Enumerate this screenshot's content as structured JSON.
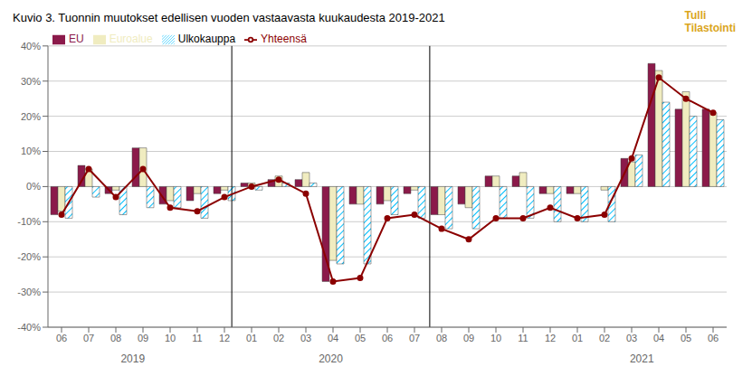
{
  "chart_data": {
    "type": "bar",
    "title": "Kuvio  3. Tuonnin  muutokset edellisen vuoden  vastaavasta kuukaudesta 2019-2021",
    "categories": [
      "06",
      "07",
      "08",
      "09",
      "10",
      "11",
      "12",
      "01",
      "02",
      "03",
      "04",
      "05",
      "06",
      "07",
      "08",
      "09",
      "10",
      "11",
      "12",
      "01",
      "02",
      "03",
      "04",
      "05",
      "06"
    ],
    "series": [
      {
        "name": "EU",
        "color": "#8B1A4A",
        "values": [
          -8,
          6,
          -2,
          11,
          -5,
          -4,
          -2,
          1,
          2,
          2,
          -27,
          -5,
          -5,
          -2,
          -8,
          -5,
          3,
          3,
          -2,
          -2,
          0,
          8,
          35,
          22,
          22
        ]
      },
      {
        "name": "Euroalue",
        "color": "#F0ECC0",
        "values": [
          -7,
          5,
          -1,
          11,
          -4,
          -2,
          -1,
          1,
          3,
          4,
          -21,
          -5,
          -4,
          -1,
          -8,
          -6,
          3,
          4,
          -2,
          -2,
          -1,
          7,
          33,
          27,
          21
        ]
      },
      {
        "name": "Ulkokauppa",
        "color": "#00BFFF",
        "values": [
          -9,
          -3,
          -8,
          -6,
          -6,
          -9,
          -4,
          -1,
          1,
          1,
          -22,
          -22,
          -8,
          -9,
          -12,
          -12,
          -9,
          -9,
          -10,
          -10,
          -10,
          9,
          24,
          20,
          19
        ]
      },
      {
        "name": "Yhteensä",
        "type": "line",
        "color": "#8B0000",
        "marker": "circle",
        "values": [
          -8,
          5,
          -3,
          5,
          -6,
          -7,
          -3,
          0,
          2,
          -2,
          -27,
          -26,
          -9,
          -8,
          -12,
          -15,
          -9,
          -9,
          -6,
          -9,
          -8,
          8,
          31,
          25,
          21
        ]
      }
    ],
    "ylim": [
      -40,
      40
    ],
    "yticks": [
      {
        "value": -40,
        "label": "-40%"
      },
      {
        "value": -30,
        "label": "-30%"
      },
      {
        "value": -20,
        "label": "-20%"
      },
      {
        "value": -10,
        "label": "-10%"
      },
      {
        "value": 0,
        "label": "0%"
      },
      {
        "value": 10,
        "label": "10%"
      },
      {
        "value": 20,
        "label": "20%"
      },
      {
        "value": 30,
        "label": "30%"
      },
      {
        "value": 40,
        "label": "40%"
      }
    ],
    "grid": true,
    "legend": "upper left",
    "separators": [
      6.5,
      13.5
    ],
    "annotations": [
      {
        "text": "2019",
        "x": 3.0
      },
      {
        "text": "2020",
        "x": 10.0
      },
      {
        "text": "2021",
        "x": 21.0
      },
      {
        "text": "Tulli"
      },
      {
        "text": "Tilastointi"
      }
    ]
  }
}
